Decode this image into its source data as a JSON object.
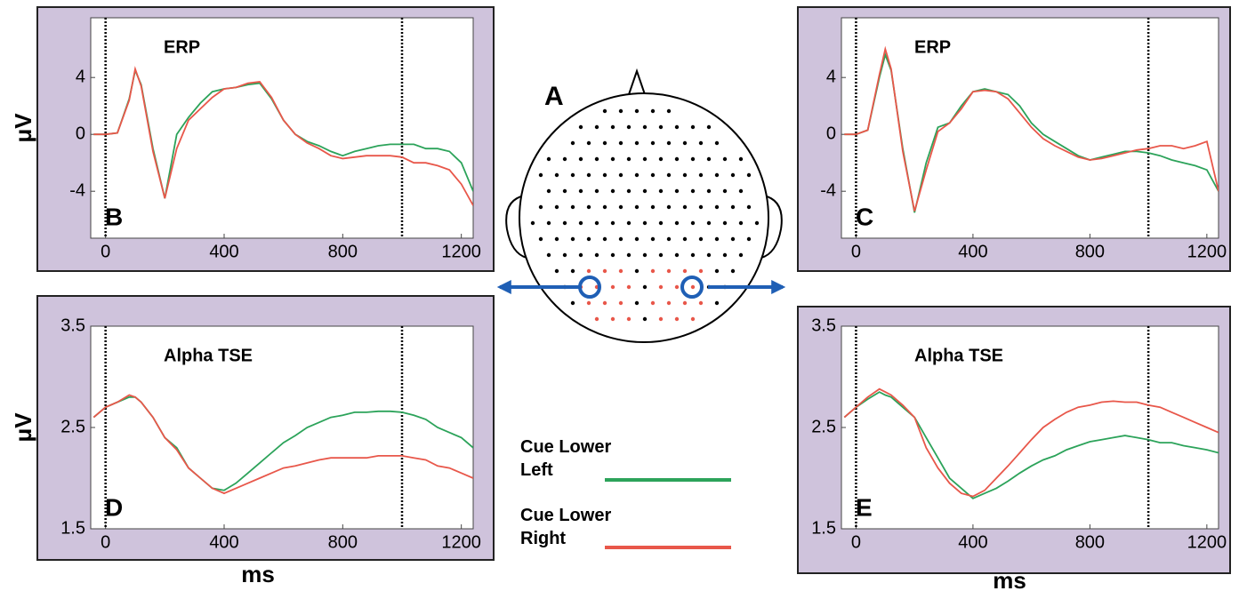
{
  "chart_data": [
    {
      "type": "line",
      "title": "ERP",
      "panel_label": "B",
      "ylabel": "μV",
      "x": [
        -40,
        0,
        40,
        80,
        100,
        120,
        160,
        200,
        240,
        280,
        320,
        360,
        400,
        440,
        480,
        520,
        560,
        600,
        640,
        680,
        720,
        760,
        800,
        840,
        880,
        920,
        960,
        1000,
        1040,
        1080,
        1120,
        1160,
        1200,
        1240
      ],
      "xlim": [
        -50,
        1240
      ],
      "xticks": [
        0,
        400,
        800,
        1200
      ],
      "ylim": [
        -7.3,
        8.2
      ],
      "yticks": [
        -4,
        0,
        4
      ],
      "vlines": [
        0,
        1000
      ],
      "series": [
        {
          "name": "Cue Lower Left",
          "color": "#2ca35a",
          "values": [
            0,
            0,
            0.1,
            2.5,
            4.5,
            3.5,
            -1,
            -4.5,
            0,
            1.2,
            2.2,
            3,
            3.2,
            3.3,
            3.5,
            3.6,
            2.5,
            1,
            0,
            -0.5,
            -0.8,
            -1.2,
            -1.5,
            -1.2,
            -1,
            -0.8,
            -0.7,
            -0.7,
            -0.7,
            -1,
            -1,
            -1.2,
            -2,
            -4
          ]
        },
        {
          "name": "Cue Lower Right",
          "color": "#e8574a",
          "values": [
            0,
            0,
            0.1,
            2.4,
            4.6,
            3.4,
            -1.2,
            -4.5,
            -1,
            1,
            1.8,
            2.6,
            3.2,
            3.3,
            3.6,
            3.7,
            2.6,
            1,
            0,
            -0.6,
            -1,
            -1.5,
            -1.7,
            -1.6,
            -1.5,
            -1.5,
            -1.5,
            -1.6,
            -2,
            -2,
            -2.2,
            -2.5,
            -3.5,
            -5
          ]
        }
      ]
    },
    {
      "type": "line",
      "title": "ERP",
      "panel_label": "C",
      "x": [
        -40,
        0,
        40,
        80,
        100,
        120,
        160,
        200,
        240,
        280,
        320,
        360,
        400,
        440,
        480,
        520,
        560,
        600,
        640,
        680,
        720,
        760,
        800,
        840,
        880,
        920,
        960,
        1000,
        1040,
        1080,
        1120,
        1160,
        1200,
        1240
      ],
      "xlim": [
        -50,
        1240
      ],
      "xticks": [
        0,
        400,
        800,
        1200
      ],
      "ylim": [
        -7.3,
        8.2
      ],
      "yticks": [
        -4,
        0,
        4
      ],
      "vlines": [
        0,
        1000
      ],
      "series": [
        {
          "color": "#2ca35a",
          "values": [
            0,
            0,
            0.3,
            4,
            5.6,
            4.5,
            -1,
            -5.5,
            -2,
            0.5,
            0.8,
            2,
            3,
            3.2,
            3,
            2.8,
            2,
            0.8,
            0,
            -0.5,
            -1,
            -1.5,
            -1.8,
            -1.6,
            -1.4,
            -1.2,
            -1.2,
            -1.3,
            -1.5,
            -1.8,
            -2,
            -2.2,
            -2.5,
            -4
          ]
        },
        {
          "color": "#e8574a",
          "values": [
            0,
            0,
            0.3,
            4.2,
            6,
            4.6,
            -1.2,
            -5.4,
            -2.5,
            0.2,
            0.8,
            1.8,
            3,
            3.1,
            3,
            2.5,
            1.5,
            0.5,
            -0.3,
            -0.8,
            -1.2,
            -1.6,
            -1.8,
            -1.7,
            -1.5,
            -1.3,
            -1.1,
            -1,
            -0.8,
            -0.8,
            -1,
            -0.8,
            -0.5,
            -4
          ]
        }
      ]
    },
    {
      "type": "line",
      "title": "Alpha TSE",
      "panel_label": "D",
      "ylabel": "μV",
      "xlabel": "ms",
      "x": [
        -40,
        0,
        40,
        80,
        100,
        120,
        160,
        200,
        240,
        280,
        320,
        360,
        400,
        440,
        480,
        520,
        560,
        600,
        640,
        680,
        720,
        760,
        800,
        840,
        880,
        920,
        960,
        1000,
        1040,
        1080,
        1120,
        1160,
        1200,
        1240
      ],
      "xlim": [
        -50,
        1240
      ],
      "xticks": [
        0,
        400,
        800,
        1200
      ],
      "ylim": [
        1.5,
        3.5
      ],
      "yticks": [
        1.5,
        2.5,
        3.5
      ],
      "vlines": [
        0,
        1000
      ],
      "series": [
        {
          "color": "#2ca35a",
          "values": [
            2.6,
            2.7,
            2.75,
            2.8,
            2.8,
            2.75,
            2.6,
            2.4,
            2.3,
            2.1,
            2,
            1.9,
            1.88,
            1.95,
            2.05,
            2.15,
            2.25,
            2.35,
            2.42,
            2.5,
            2.55,
            2.6,
            2.62,
            2.65,
            2.65,
            2.66,
            2.66,
            2.65,
            2.62,
            2.58,
            2.5,
            2.45,
            2.4,
            2.3
          ]
        },
        {
          "color": "#e8574a",
          "values": [
            2.6,
            2.7,
            2.75,
            2.82,
            2.8,
            2.75,
            2.6,
            2.4,
            2.28,
            2.1,
            2,
            1.9,
            1.85,
            1.9,
            1.95,
            2,
            2.05,
            2.1,
            2.12,
            2.15,
            2.18,
            2.2,
            2.2,
            2.2,
            2.2,
            2.22,
            2.22,
            2.22,
            2.2,
            2.18,
            2.12,
            2.1,
            2.05,
            2
          ]
        }
      ]
    },
    {
      "type": "line",
      "title": "Alpha TSE",
      "panel_label": "E",
      "xlabel": "ms",
      "x": [
        -40,
        0,
        40,
        80,
        100,
        120,
        160,
        200,
        240,
        280,
        320,
        360,
        400,
        440,
        480,
        520,
        560,
        600,
        640,
        680,
        720,
        760,
        800,
        840,
        880,
        920,
        960,
        1000,
        1040,
        1080,
        1120,
        1160,
        1200,
        1240
      ],
      "xlim": [
        -50,
        1240
      ],
      "xticks": [
        0,
        400,
        800,
        1200
      ],
      "ylim": [
        1.5,
        3.5
      ],
      "yticks": [
        1.5,
        2.5,
        3.5
      ],
      "vlines": [
        0,
        1000
      ],
      "series": [
        {
          "color": "#2ca35a",
          "values": [
            2.6,
            2.7,
            2.78,
            2.85,
            2.82,
            2.8,
            2.7,
            2.6,
            2.4,
            2.2,
            2,
            1.9,
            1.8,
            1.85,
            1.9,
            1.97,
            2.05,
            2.12,
            2.18,
            2.22,
            2.28,
            2.32,
            2.36,
            2.38,
            2.4,
            2.42,
            2.4,
            2.38,
            2.35,
            2.35,
            2.32,
            2.3,
            2.28,
            2.25
          ]
        },
        {
          "color": "#e8574a",
          "values": [
            2.6,
            2.7,
            2.8,
            2.88,
            2.85,
            2.82,
            2.72,
            2.6,
            2.3,
            2.1,
            1.95,
            1.85,
            1.82,
            1.88,
            2,
            2.12,
            2.25,
            2.38,
            2.5,
            2.58,
            2.65,
            2.7,
            2.72,
            2.75,
            2.76,
            2.75,
            2.75,
            2.72,
            2.7,
            2.65,
            2.6,
            2.55,
            2.5,
            2.45
          ]
        }
      ]
    }
  ],
  "diagram": {
    "label": "A"
  }
}
